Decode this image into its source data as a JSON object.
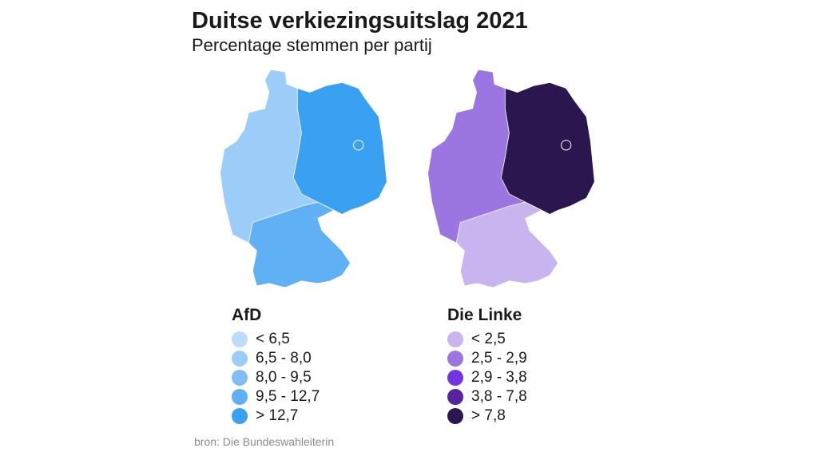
{
  "title": "Duitse verkiezingsuitslag 2021",
  "subtitle": "Percentage stemmen per partij",
  "maps": [
    {
      "party": "AfD",
      "regions": {
        "west": "#9ccdf8",
        "south": "#5fb0f4",
        "east": "#3aa0f2"
      },
      "legend": [
        {
          "label": "< 6,5",
          "color": "#bcdcfa"
        },
        {
          "label": "6,5 - 8,0",
          "color": "#9ccdf8"
        },
        {
          "label": "8,0 - 9,5",
          "color": "#80bff6"
        },
        {
          "label": "9,5 - 12,7",
          "color": "#5fb0f4"
        },
        {
          "label": "> 12,7",
          "color": "#3aa0f2"
        }
      ]
    },
    {
      "party": "Die Linke",
      "regions": {
        "west": "#9b75e0",
        "south": "#c8b4ef",
        "east": "#2b1650"
      },
      "legend": [
        {
          "label": "< 2,5",
          "color": "#c8b4ef"
        },
        {
          "label": "2,5 - 2,9",
          "color": "#9b75e0"
        },
        {
          "label": "2,9 - 3,8",
          "color": "#7434e0"
        },
        {
          "label": "3,8 - 7,8",
          "color": "#55249e"
        },
        {
          "label": ">  7,8",
          "color": "#2b1650"
        }
      ]
    }
  ],
  "source": "bron: Die Bundeswahleiterin"
}
